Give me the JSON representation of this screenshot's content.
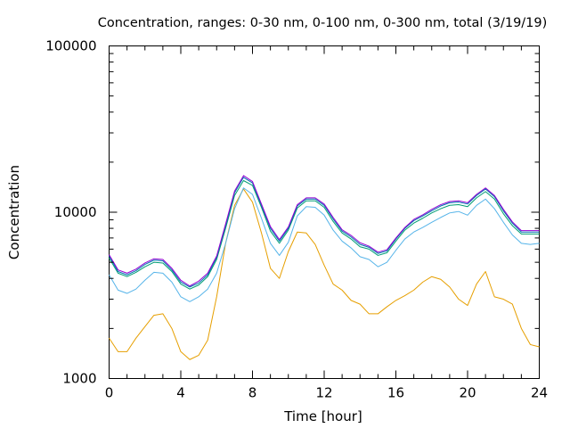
{
  "chart_data": {
    "type": "line",
    "title": "Concentration, ranges: 0-30 nm, 0-100 nm, 0-300 nm, total (3/19/19)",
    "xlabel": "Time [hour]",
    "ylabel": "Concentration",
    "xlim": [
      0,
      24
    ],
    "ylim": [
      1000,
      100000
    ],
    "yscale": "log",
    "grid": false,
    "legend": "none",
    "x_ticks": [
      0,
      4,
      8,
      12,
      16,
      20,
      24
    ],
    "x_tick_labels": [
      "0",
      "4",
      "8",
      "12",
      "16",
      "20",
      "24"
    ],
    "y_ticks": [
      1000,
      10000,
      100000
    ],
    "y_tick_labels": [
      "1000",
      "10000",
      "100000"
    ],
    "x": [
      0,
      0.5,
      1,
      1.5,
      2,
      2.5,
      3,
      3.5,
      4,
      4.5,
      5,
      5.5,
      6,
      6.5,
      7,
      7.5,
      8,
      8.5,
      9,
      9.5,
      10,
      10.5,
      11,
      11.5,
      12,
      12.5,
      13,
      13.5,
      14,
      14.5,
      15,
      15.5,
      16,
      16.5,
      17,
      17.5,
      18,
      18.5,
      19,
      19.5,
      20,
      20.5,
      21,
      21.5,
      22,
      22.5,
      23,
      23.5,
      24
    ],
    "series": [
      {
        "color": "#e69f00",
        "values": [
          1750,
          1450,
          1450,
          1750,
          2050,
          2400,
          2450,
          2000,
          1450,
          1300,
          1380,
          1700,
          3100,
          6500,
          11000,
          13800,
          11500,
          7500,
          4600,
          4000,
          5800,
          7600,
          7500,
          6400,
          4800,
          3700,
          3400,
          2950,
          2800,
          2450,
          2450,
          2700,
          2950,
          3150,
          3400,
          3800,
          4100,
          3950,
          3550,
          3000,
          2750,
          3700,
          4400,
          3100,
          3000,
          2800,
          2000,
          1600,
          1550
        ]
      },
      {
        "color": "#56b4e9",
        "values": [
          4200,
          3400,
          3250,
          3450,
          3900,
          4350,
          4300,
          3800,
          3100,
          2900,
          3100,
          3450,
          4300,
          6500,
          10500,
          14000,
          12800,
          9200,
          6500,
          5500,
          6600,
          9500,
          10800,
          10700,
          9600,
          7800,
          6700,
          6100,
          5400,
          5200,
          4700,
          5000,
          5900,
          6900,
          7600,
          8100,
          8700,
          9300,
          9900,
          10100,
          9600,
          11000,
          12000,
          10500,
          8700,
          7300,
          6500,
          6400,
          6500
        ]
      },
      {
        "color": "#009e73",
        "values": [
          5300,
          4300,
          4100,
          4350,
          4700,
          5000,
          4950,
          4400,
          3700,
          3450,
          3650,
          4100,
          5200,
          8000,
          12600,
          15500,
          14500,
          10700,
          7700,
          6500,
          7800,
          10600,
          11700,
          11700,
          10700,
          8800,
          7500,
          6900,
          6200,
          6000,
          5500,
          5700,
          6700,
          7800,
          8600,
          9200,
          9900,
          10500,
          11000,
          11100,
          10800,
          12200,
          13300,
          12000,
          9800,
          8300,
          7400,
          7400,
          7400
        ]
      },
      {
        "color": "#0072b2",
        "values": [
          5450,
          4400,
          4200,
          4450,
          4850,
          5150,
          5100,
          4500,
          3800,
          3550,
          3750,
          4200,
          5350,
          8300,
          13100,
          16200,
          15000,
          11000,
          8000,
          6700,
          8000,
          10900,
          12000,
          12000,
          11000,
          9100,
          7700,
          7100,
          6400,
          6150,
          5650,
          5850,
          6900,
          8000,
          8900,
          9500,
          10200,
          10900,
          11400,
          11500,
          11200,
          12600,
          13800,
          12400,
          10200,
          8600,
          7600,
          7600,
          7600
        ]
      },
      {
        "color": "#9400d3",
        "values": [
          5550,
          4500,
          4300,
          4550,
          4950,
          5250,
          5200,
          4600,
          3900,
          3600,
          3850,
          4300,
          5450,
          8500,
          13400,
          16600,
          15300,
          11200,
          8200,
          6850,
          8150,
          11100,
          12200,
          12200,
          11200,
          9300,
          7850,
          7250,
          6550,
          6250,
          5750,
          5950,
          7000,
          8100,
          9050,
          9650,
          10400,
          11100,
          11600,
          11700,
          11400,
          12800,
          14000,
          12600,
          10400,
          8750,
          7750,
          7750,
          7750
        ]
      }
    ]
  }
}
